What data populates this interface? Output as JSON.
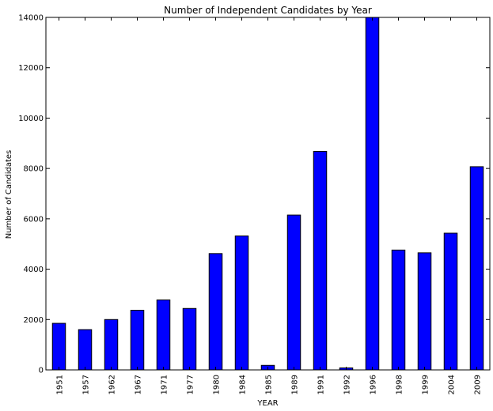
{
  "chart_data": {
    "type": "bar",
    "title": "Number of Independent Candidates by Year",
    "xlabel": "YEAR",
    "ylabel": "Number of Candidates",
    "categories": [
      "1951",
      "1957",
      "1962",
      "1967",
      "1971",
      "1977",
      "1980",
      "1984",
      "1985",
      "1989",
      "1991",
      "1992",
      "1996",
      "1998",
      "1999",
      "2004",
      "2009"
    ],
    "values": [
      1850,
      1600,
      2000,
      2370,
      2780,
      2440,
      4620,
      5320,
      180,
      6150,
      8680,
      80,
      14000,
      4760,
      4650,
      5430,
      8070
    ],
    "ylim": [
      0,
      14000
    ],
    "yticks": [
      0,
      2000,
      4000,
      6000,
      8000,
      10000,
      12000,
      14000
    ],
    "bar_color": "#0000ff",
    "grid": false,
    "legend": "none"
  }
}
